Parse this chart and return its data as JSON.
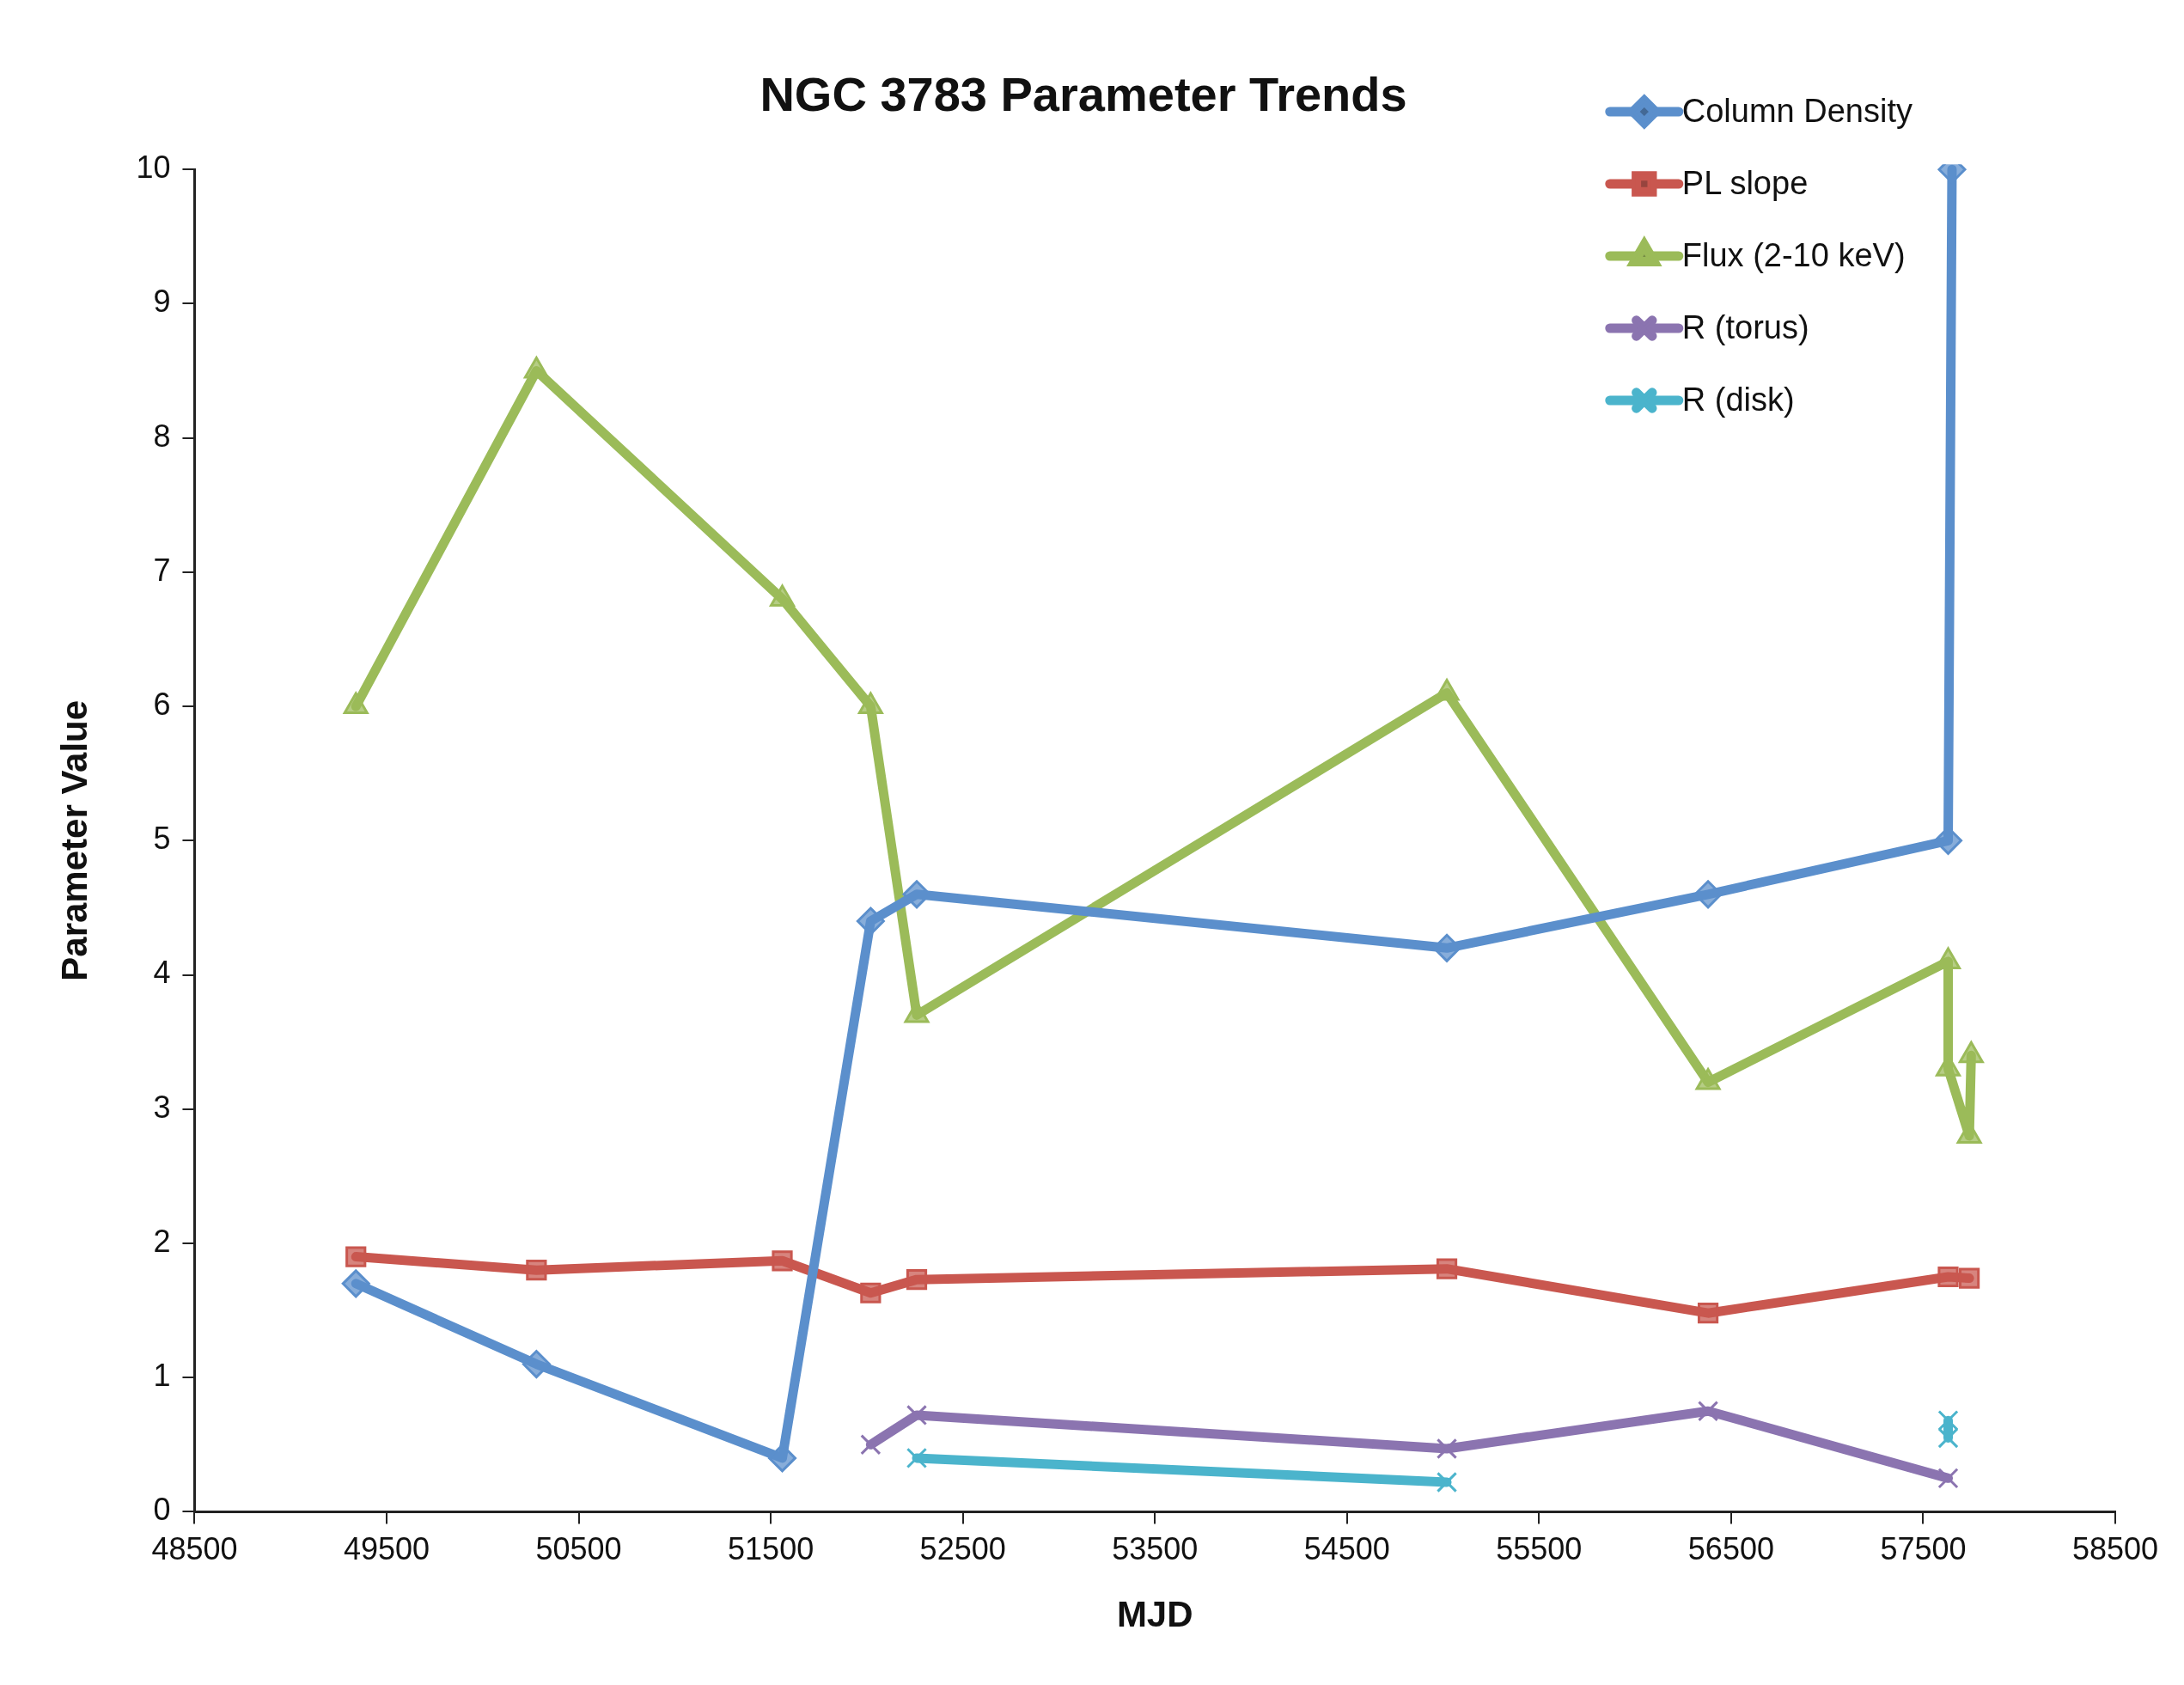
{
  "chart_data": {
    "type": "line",
    "title": "NGC 3783 Parameter Trends",
    "xlabel": "MJD",
    "ylabel": "Parameter Value",
    "xlim": [
      48500,
      58500
    ],
    "xticks": [
      48500,
      49500,
      50500,
      51500,
      52500,
      53500,
      54500,
      55500,
      56500,
      57500,
      58500
    ],
    "ylim": [
      0,
      10
    ],
    "yticks": [
      0,
      1,
      2,
      3,
      4,
      5,
      6,
      7,
      8,
      9,
      10
    ],
    "grid": false,
    "legend": "top right",
    "line_style": "solid",
    "series": [
      {
        "name": "Column Density",
        "color": "#5b8fcc",
        "marker": "diamond",
        "x": [
          49340,
          50280,
          51560,
          52020,
          52260,
          55020,
          56380,
          57630,
          57650
        ],
        "values": [
          1.7,
          1.1,
          0.4,
          4.4,
          4.6,
          4.2,
          4.6,
          5.0,
          10
        ]
      },
      {
        "name": "PL slope",
        "color": "#c9574f",
        "marker": "square",
        "x": [
          49340,
          50280,
          51560,
          52020,
          52260,
          55020,
          56380,
          57630,
          57740
        ],
        "values": [
          1.9,
          1.8,
          1.87,
          1.63,
          1.73,
          1.81,
          1.48,
          1.75,
          1.74
        ]
      },
      {
        "name": "Flux (2-10 keV)",
        "color": "#9bbb59",
        "marker": "triangle",
        "x": [
          49340,
          50280,
          51560,
          52020,
          52260,
          55020,
          56380,
          57630,
          57630,
          57740,
          57750
        ],
        "values": [
          6.0,
          8.5,
          6.8,
          6.0,
          3.7,
          6.1,
          3.2,
          4.1,
          3.3,
          2.8,
          3.4
        ]
      },
      {
        "name": "R (torus)",
        "color": "#8b74b0",
        "marker": "cross",
        "x": [
          52020,
          52260,
          55020,
          56380,
          57630
        ],
        "values": [
          0.5,
          0.72,
          0.47,
          0.75,
          0.25
        ]
      },
      {
        "name": "R (disk)",
        "color": "#4bb4cc",
        "marker": "cross",
        "x": [
          52260,
          55020,
          57000,
          57630,
          57630
        ],
        "values": [
          0.4,
          0.22,
          null,
          0.68,
          0.55
        ]
      }
    ]
  }
}
